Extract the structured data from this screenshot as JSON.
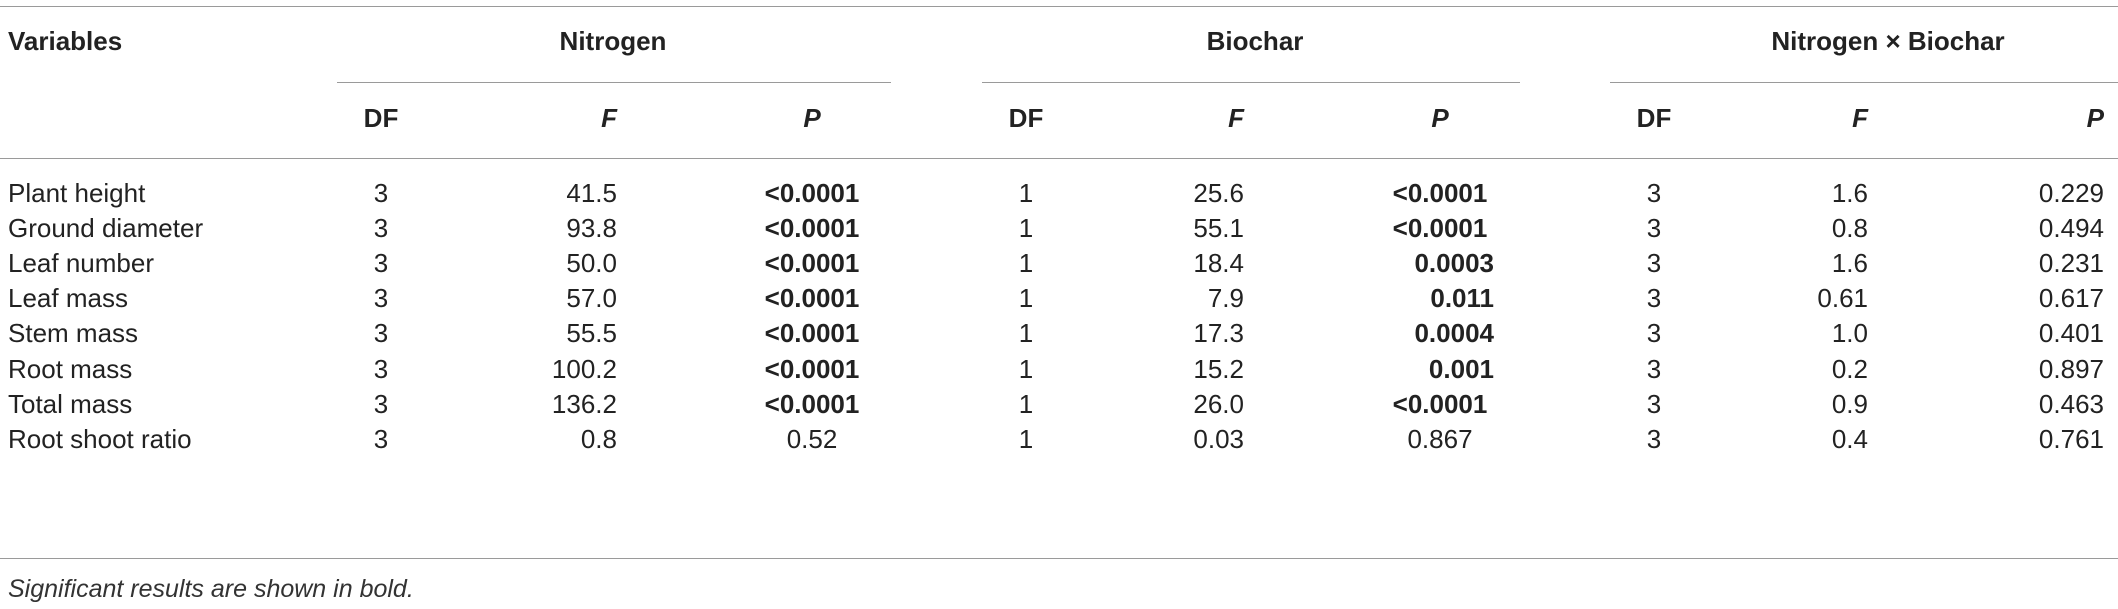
{
  "table": {
    "header": {
      "variables": "Variables",
      "groups": [
        "Nitrogen",
        "Biochar",
        "Nitrogen × Biochar"
      ],
      "subheaders": [
        "DF",
        "F",
        "P"
      ]
    },
    "rows": [
      {
        "label": "Plant height",
        "cells": [
          {
            "v": "3"
          },
          {
            "v": "41.5"
          },
          {
            "v": "<0.0001",
            "bold": true
          },
          {
            "v": "1"
          },
          {
            "v": "25.6"
          },
          {
            "v": "<0.0001",
            "bold": true
          },
          {
            "v": "3"
          },
          {
            "v": "1.6"
          },
          {
            "v": "0.229"
          }
        ]
      },
      {
        "label": "Ground diameter",
        "cells": [
          {
            "v": "3"
          },
          {
            "v": "93.8"
          },
          {
            "v": "<0.0001",
            "bold": true
          },
          {
            "v": "1"
          },
          {
            "v": "55.1"
          },
          {
            "v": "<0.0001",
            "bold": true
          },
          {
            "v": "3"
          },
          {
            "v": "0.8"
          },
          {
            "v": "0.494"
          }
        ]
      },
      {
        "label": "Leaf number",
        "cells": [
          {
            "v": "3"
          },
          {
            "v": "50.0"
          },
          {
            "v": "<0.0001",
            "bold": true
          },
          {
            "v": "1"
          },
          {
            "v": "18.4"
          },
          {
            "v": "0.0003",
            "bold": true
          },
          {
            "v": "3"
          },
          {
            "v": "1.6"
          },
          {
            "v": "0.231"
          }
        ]
      },
      {
        "label": "Leaf mass",
        "cells": [
          {
            "v": "3"
          },
          {
            "v": "57.0"
          },
          {
            "v": "<0.0001",
            "bold": true
          },
          {
            "v": "1"
          },
          {
            "v": "7.9"
          },
          {
            "v": "0.011",
            "bold": true
          },
          {
            "v": "3"
          },
          {
            "v": "0.61"
          },
          {
            "v": "0.617"
          }
        ]
      },
      {
        "label": "Stem mass",
        "cells": [
          {
            "v": "3"
          },
          {
            "v": "55.5"
          },
          {
            "v": "<0.0001",
            "bold": true
          },
          {
            "v": "1"
          },
          {
            "v": "17.3"
          },
          {
            "v": "0.0004",
            "bold": true
          },
          {
            "v": "3"
          },
          {
            "v": "1.0"
          },
          {
            "v": "0.401"
          }
        ]
      },
      {
        "label": "Root mass",
        "cells": [
          {
            "v": "3"
          },
          {
            "v": "100.2"
          },
          {
            "v": "<0.0001",
            "bold": true
          },
          {
            "v": "1"
          },
          {
            "v": "15.2"
          },
          {
            "v": "0.001",
            "bold": true
          },
          {
            "v": "3"
          },
          {
            "v": "0.2"
          },
          {
            "v": "0.897"
          }
        ]
      },
      {
        "label": "Total mass",
        "cells": [
          {
            "v": "3"
          },
          {
            "v": "136.2"
          },
          {
            "v": "<0.0001",
            "bold": true
          },
          {
            "v": "1"
          },
          {
            "v": "26.0"
          },
          {
            "v": "<0.0001",
            "bold": true
          },
          {
            "v": "3"
          },
          {
            "v": "0.9"
          },
          {
            "v": "0.463"
          }
        ]
      },
      {
        "label": "Root shoot ratio",
        "cells": [
          {
            "v": "3"
          },
          {
            "v": "0.8"
          },
          {
            "v": "0.52"
          },
          {
            "v": "1"
          },
          {
            "v": "0.03"
          },
          {
            "v": "0.867"
          },
          {
            "v": "3"
          },
          {
            "v": "0.4"
          },
          {
            "v": "0.761"
          }
        ]
      }
    ],
    "footnote": "Significant results are shown in bold."
  }
}
